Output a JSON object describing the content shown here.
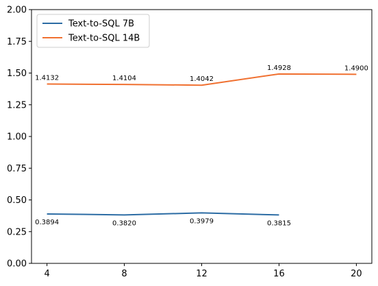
{
  "chart_data": {
    "type": "line",
    "title": "",
    "xlabel": "",
    "ylabel": "",
    "x": [
      4,
      8,
      12,
      16,
      20
    ],
    "x_ticks": [
      "4",
      "8",
      "12",
      "16",
      "20"
    ],
    "xlim": [
      3.2,
      20.8
    ],
    "ylim": [
      0,
      2
    ],
    "y_ticks": [
      "0.00",
      "0.25",
      "0.50",
      "0.75",
      "1.00",
      "1.25",
      "1.50",
      "1.75",
      "2.00"
    ],
    "y_tick_values": [
      0,
      0.25,
      0.5,
      0.75,
      1.0,
      1.25,
      1.5,
      1.75,
      2.0
    ],
    "grid": false,
    "legend_position": "top-left",
    "series": [
      {
        "name": "Text-to-SQL 7B",
        "color": "#2c6ca4",
        "x": [
          4,
          8,
          12,
          16
        ],
        "values": [
          0.3894,
          0.382,
          0.3979,
          0.3815
        ],
        "labels": [
          "0.3894",
          "0.3820",
          "0.3979",
          "0.3815"
        ],
        "label_position": "below"
      },
      {
        "name": "Text-to-SQL 14B",
        "color": "#f07030",
        "x": [
          4,
          8,
          12,
          16,
          20
        ],
        "values": [
          1.4132,
          1.4104,
          1.4042,
          1.4928,
          1.49
        ],
        "labels": [
          "1.4132",
          "1.4104",
          "1.4042",
          "1.4928",
          "1.4900"
        ],
        "label_position": "above"
      }
    ]
  }
}
